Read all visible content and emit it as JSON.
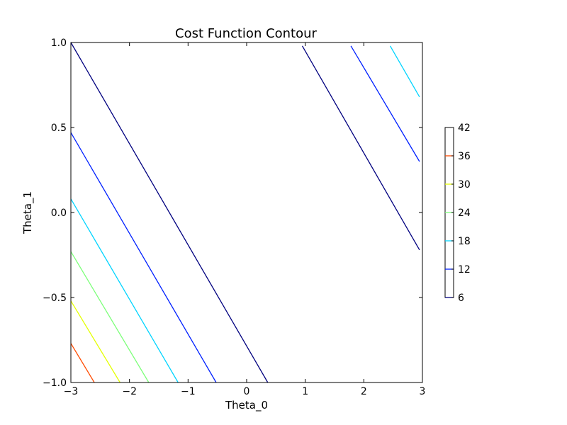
{
  "chart_data": {
    "type": "contour",
    "title": "Cost Function Contour",
    "xlabel": "Theta_0",
    "ylabel": "Theta_1",
    "xlim": [
      -3,
      3
    ],
    "ylim": [
      -1,
      1
    ],
    "grid": false,
    "x_ticks": [
      -3,
      -2,
      -1,
      0,
      1,
      2,
      3
    ],
    "x_tick_labels": [
      "−3",
      "−2",
      "−1",
      "0",
      "1",
      "2",
      "3"
    ],
    "y_ticks": [
      -1.0,
      -0.5,
      0.0,
      0.5,
      1.0
    ],
    "y_tick_labels": [
      "−1.0",
      "−0.5",
      "0.0",
      "0.5",
      "1.0"
    ],
    "colorbar": {
      "placement": "right",
      "ticks": [
        6,
        12,
        18,
        24,
        30,
        36,
        42
      ],
      "tick_labels": [
        "6",
        "12",
        "18",
        "24",
        "30",
        "36",
        "42"
      ]
    },
    "levels": [
      {
        "level": 6,
        "color": "#00007f",
        "segments": [
          [
            [
              -3.0,
              1.0
            ],
            [
              0.36,
              -1.0
            ]
          ],
          [
            [
              0.95,
              0.98
            ],
            [
              2.95,
              -0.22
            ]
          ]
        ]
      },
      {
        "level": 12,
        "color": "#0020ff",
        "segments": [
          [
            [
              -3.0,
              0.47
            ],
            [
              -0.52,
              -1.0
            ]
          ],
          [
            [
              1.78,
              0.98
            ],
            [
              2.95,
              0.3
            ]
          ]
        ]
      },
      {
        "level": 18,
        "color": "#00d4ff",
        "segments": [
          [
            [
              -3.0,
              0.08
            ],
            [
              -1.17,
              -1.0
            ]
          ],
          [
            [
              2.45,
              0.98
            ],
            [
              2.95,
              0.68
            ]
          ]
        ]
      },
      {
        "level": 24,
        "color": "#7cff79",
        "segments": [
          [
            [
              -3.0,
              -0.23
            ],
            [
              -1.67,
              -1.0
            ]
          ]
        ]
      },
      {
        "level": 30,
        "color": "#e4ff00",
        "segments": [
          [
            [
              -3.0,
              -0.52
            ],
            [
              -2.16,
              -1.0
            ]
          ]
        ]
      },
      {
        "level": 36,
        "color": "#ff4a00",
        "segments": [
          [
            [
              -3.0,
              -0.77
            ],
            [
              -2.6,
              -1.0
            ]
          ]
        ]
      }
    ]
  }
}
